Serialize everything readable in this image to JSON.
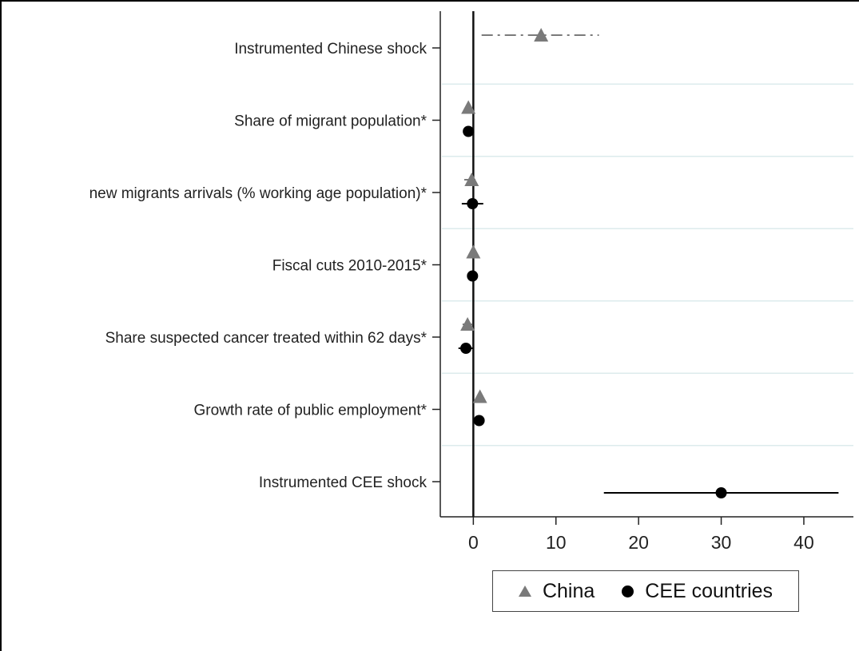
{
  "chart_data": {
    "type": "scatter",
    "subtype": "coefficient-plot-with-confidence-intervals",
    "title": "",
    "xlabel": "",
    "ylabel": "",
    "categories": [
      "Instrumented Chinese shock",
      "Share of migrant population*",
      "new migrants arrivals (% working age population)*",
      "Fiscal cuts 2010-2015*",
      "Share suspected cancer treated within 62 days*",
      "Growth rate of public employment*",
      "Instrumented CEE shock"
    ],
    "xlim": [
      -4,
      46
    ],
    "xticks": [
      0,
      10,
      20,
      30,
      40
    ],
    "x_reference_line": 0,
    "grid": "horizontal lines between categories",
    "legend_position": "bottom",
    "series": [
      {
        "name": "China",
        "marker": "triangle",
        "color": "#7a7a7a",
        "line_style": "dash-dot",
        "points": [
          {
            "category": "Instrumented Chinese shock",
            "estimate": 8.2,
            "ci": [
              1.0,
              15.2
            ]
          },
          {
            "category": "Share of migrant population*",
            "estimate": -0.6,
            "ci": [
              -1.0,
              -0.2
            ]
          },
          {
            "category": "new migrants arrivals (% working age population)*",
            "estimate": -0.2,
            "ci": [
              -1.1,
              0.6
            ]
          },
          {
            "category": "Fiscal cuts 2010-2015*",
            "estimate": 0.0,
            "ci": [
              -0.4,
              0.4
            ]
          },
          {
            "category": "Share suspected cancer treated within 62 days*",
            "estimate": -0.7,
            "ci": [
              -1.3,
              -0.1
            ]
          },
          {
            "category": "Growth rate of public employment*",
            "estimate": 0.8,
            "ci": [
              0.4,
              1.2
            ]
          }
        ]
      },
      {
        "name": "CEE countries",
        "marker": "circle",
        "color": "#000000",
        "line_style": "solid",
        "points": [
          {
            "category": "Share of migrant population*",
            "estimate": -0.6,
            "ci": [
              -1.0,
              -0.2
            ]
          },
          {
            "category": "new migrants arrivals (% working age population)*",
            "estimate": -0.1,
            "ci": [
              -1.4,
              1.2
            ]
          },
          {
            "category": "Fiscal cuts 2010-2015*",
            "estimate": -0.1,
            "ci": [
              -0.5,
              0.3
            ]
          },
          {
            "category": "Share suspected cancer treated within 62 days*",
            "estimate": -0.9,
            "ci": [
              -1.8,
              0.0
            ]
          },
          {
            "category": "Growth rate of public employment*",
            "estimate": 0.7,
            "ci": [
              0.3,
              1.1
            ]
          },
          {
            "category": "Instrumented CEE shock",
            "estimate": 30.0,
            "ci": [
              15.8,
              44.2
            ]
          }
        ]
      }
    ]
  }
}
